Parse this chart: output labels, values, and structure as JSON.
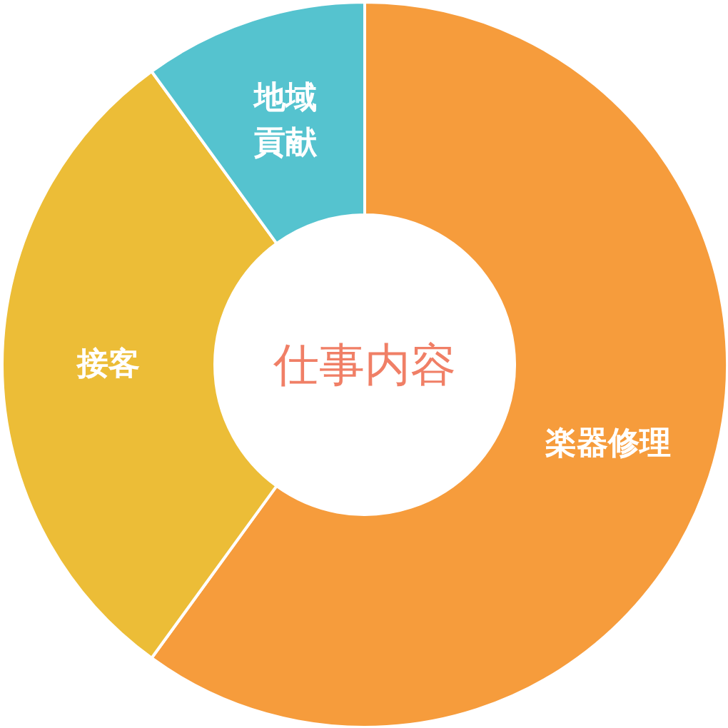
{
  "chart_data": {
    "type": "donut",
    "title": "仕事内容",
    "categories": [
      "楽器修理",
      "接客",
      "地域貢献"
    ],
    "values": [
      60,
      30,
      10
    ],
    "colors": [
      "#f69c3c",
      "#ecbd37",
      "#55c3cf"
    ]
  }
}
